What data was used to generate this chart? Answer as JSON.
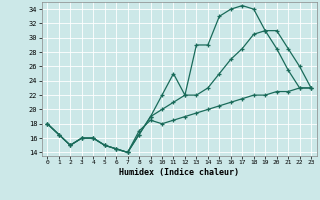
{
  "bg_color": "#cce8e8",
  "grid_color": "#b0d0d0",
  "line_color": "#1a6b5a",
  "xlabel": "Humidex (Indice chaleur)",
  "xlim": [
    -0.5,
    23.5
  ],
  "ylim": [
    13.5,
    35.0
  ],
  "yticks": [
    14,
    16,
    18,
    20,
    22,
    24,
    26,
    28,
    30,
    32,
    34
  ],
  "xticks": [
    0,
    1,
    2,
    3,
    4,
    5,
    6,
    7,
    8,
    9,
    10,
    11,
    12,
    13,
    14,
    15,
    16,
    17,
    18,
    19,
    20,
    21,
    22,
    23
  ],
  "line1_x": [
    0,
    1,
    2,
    3,
    4,
    5,
    6,
    7,
    8,
    9,
    10,
    11,
    12,
    13,
    14,
    15,
    16,
    17,
    18,
    19,
    20,
    21,
    22,
    23
  ],
  "line1_y": [
    18,
    16.5,
    15,
    16,
    16,
    15,
    14.5,
    14,
    16.5,
    19,
    22,
    25,
    22,
    29,
    29,
    33,
    34,
    34.5,
    34,
    31,
    28.5,
    25.5,
    23,
    23
  ],
  "line2_x": [
    0,
    1,
    2,
    3,
    4,
    5,
    6,
    7,
    8,
    9,
    10,
    11,
    12,
    13,
    14,
    15,
    16,
    17,
    18,
    19,
    20,
    21,
    22,
    23
  ],
  "line2_y": [
    18,
    16.5,
    15,
    16,
    16,
    15,
    14.5,
    14,
    16.5,
    19,
    20,
    21,
    22,
    22,
    23,
    25,
    27,
    28.5,
    30.5,
    31,
    31,
    28.5,
    26,
    23
  ],
  "line3_x": [
    0,
    1,
    2,
    3,
    4,
    5,
    6,
    7,
    8,
    9,
    10,
    11,
    12,
    13,
    14,
    15,
    16,
    17,
    18,
    19,
    20,
    21,
    22,
    23
  ],
  "line3_y": [
    18,
    16.5,
    15,
    16,
    16,
    15,
    14.5,
    14,
    17,
    18.5,
    18,
    18.5,
    19,
    19.5,
    20,
    20.5,
    21,
    21.5,
    22,
    22,
    22.5,
    22.5,
    23,
    23
  ]
}
